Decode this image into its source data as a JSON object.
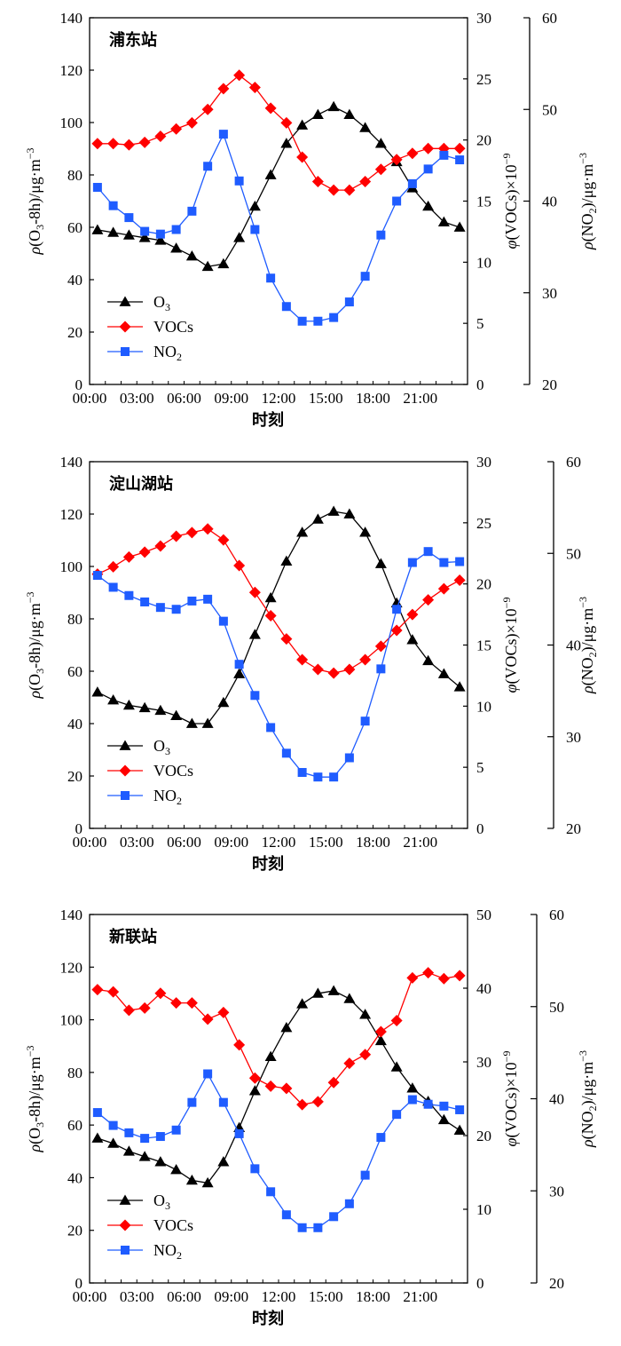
{
  "chart_data": [
    {
      "type": "line",
      "title": "浦东站",
      "xlabel": "时刻",
      "x": [
        "00:00",
        "01:00",
        "02:00",
        "03:00",
        "04:00",
        "05:00",
        "06:00",
        "07:00",
        "08:00",
        "09:00",
        "10:00",
        "11:00",
        "12:00",
        "13:00",
        "14:00",
        "15:00",
        "16:00",
        "17:00",
        "18:00",
        "19:00",
        "20:00",
        "21:00",
        "22:00",
        "23:00"
      ],
      "x_tick_labels": [
        "00:00",
        "03:00",
        "06:00",
        "09:00",
        "12:00",
        "15:00",
        "18:00",
        "21:00"
      ],
      "left_axis": {
        "label_parts": [
          "ρ",
          "(O",
          "3",
          "-8h)/μg·m",
          "−3"
        ],
        "ylim": [
          0,
          140
        ],
        "ticks": [
          0,
          20,
          40,
          60,
          80,
          100,
          120,
          140
        ]
      },
      "right_axis_1": {
        "label_parts": [
          "φ",
          "(VOCs)×10",
          "−9"
        ],
        "ylim": [
          0,
          30
        ],
        "ticks": [
          0,
          5,
          10,
          15,
          20,
          25,
          30
        ]
      },
      "right_axis_2": {
        "label_parts": [
          "ρ",
          "(NO",
          "2",
          ")/μg·m",
          "−3"
        ],
        "ylim": [
          20,
          60
        ],
        "ticks": [
          20,
          30,
          40,
          50,
          60
        ]
      },
      "series": [
        {
          "name": "O3",
          "axis": "left",
          "color": "#000000",
          "marker": "triangle",
          "values": [
            59,
            58,
            57,
            56,
            55,
            52,
            49,
            45,
            46,
            56,
            68,
            80,
            92,
            99,
            103,
            106,
            103,
            98,
            92,
            85,
            75,
            68,
            62,
            60
          ]
        },
        {
          "name": "VOCs",
          "axis": "right_1",
          "color": "#ff0000",
          "marker": "diamond",
          "values": [
            19.7,
            19.7,
            19.6,
            19.8,
            20.3,
            20.9,
            21.4,
            22.5,
            24.2,
            25.3,
            24.3,
            22.6,
            21.4,
            18.6,
            16.6,
            15.9,
            15.9,
            16.6,
            17.6,
            18.4,
            18.9,
            19.3,
            19.3,
            19.3
          ]
        },
        {
          "name": "NO2",
          "axis": "right_2",
          "color": "#1f5cff",
          "marker": "square",
          "values": [
            41.5,
            39.5,
            38.2,
            36.7,
            36.4,
            36.9,
            38.9,
            43.8,
            47.3,
            42.2,
            36.9,
            31.6,
            28.5,
            26.9,
            26.9,
            27.3,
            29.0,
            31.8,
            36.3,
            40.0,
            41.9,
            43.5,
            45.0,
            44.5
          ]
        }
      ]
    },
    {
      "type": "line",
      "title": "淀山湖站",
      "xlabel": "时刻",
      "x": [
        "00:00",
        "01:00",
        "02:00",
        "03:00",
        "04:00",
        "05:00",
        "06:00",
        "07:00",
        "08:00",
        "09:00",
        "10:00",
        "11:00",
        "12:00",
        "13:00",
        "14:00",
        "15:00",
        "16:00",
        "17:00",
        "18:00",
        "19:00",
        "20:00",
        "21:00",
        "22:00",
        "23:00"
      ],
      "x_tick_labels": [
        "00:00",
        "03:00",
        "06:00",
        "09:00",
        "12:00",
        "15:00",
        "18:00",
        "21:00"
      ],
      "left_axis": {
        "label_parts": [
          "ρ",
          "(O",
          "3",
          "-8h)/μg·m",
          "−3"
        ],
        "ylim": [
          0,
          140
        ],
        "ticks": [
          0,
          20,
          40,
          60,
          80,
          100,
          120,
          140
        ]
      },
      "right_axis_1": {
        "label_parts": [
          "φ",
          "(VOCs)×10",
          "−9"
        ],
        "ylim": [
          0,
          30
        ],
        "ticks": [
          0,
          5,
          10,
          15,
          20,
          25,
          30
        ]
      },
      "right_axis_2": {
        "label_parts": [
          "ρ",
          "(NO",
          "2",
          ")/μg·m",
          "−3"
        ],
        "ylim": [
          20,
          60
        ],
        "ticks": [
          20,
          30,
          40,
          50,
          60
        ]
      },
      "series": [
        {
          "name": "O3",
          "axis": "left",
          "color": "#000000",
          "marker": "triangle",
          "values": [
            52,
            49,
            47,
            46,
            45,
            43,
            40,
            40,
            48,
            59,
            74,
            88,
            102,
            113,
            118,
            121,
            120,
            113,
            101,
            86,
            72,
            64,
            59,
            54
          ]
        },
        {
          "name": "VOCs",
          "axis": "right_1",
          "color": "#ff0000",
          "marker": "diamond",
          "values": [
            20.8,
            21.4,
            22.2,
            22.6,
            23.1,
            23.9,
            24.2,
            24.5,
            23.6,
            21.5,
            19.3,
            17.4,
            15.5,
            13.8,
            13.0,
            12.7,
            13.0,
            13.8,
            14.9,
            16.2,
            17.5,
            18.7,
            19.6,
            20.3
          ]
        },
        {
          "name": "NO2",
          "axis": "right_2",
          "color": "#1f5cff",
          "marker": "square",
          "values": [
            47.6,
            46.3,
            45.4,
            44.7,
            44.1,
            43.9,
            44.8,
            45.0,
            42.6,
            37.9,
            34.5,
            31.0,
            28.2,
            26.1,
            25.6,
            25.6,
            27.7,
            31.7,
            37.4,
            43.9,
            49.0,
            50.2,
            49.0,
            49.1
          ]
        }
      ]
    },
    {
      "type": "line",
      "title": "新联站",
      "xlabel": "时刻",
      "x": [
        "00:00",
        "01:00",
        "02:00",
        "03:00",
        "04:00",
        "05:00",
        "06:00",
        "07:00",
        "08:00",
        "09:00",
        "10:00",
        "11:00",
        "12:00",
        "13:00",
        "14:00",
        "15:00",
        "16:00",
        "17:00",
        "18:00",
        "19:00",
        "20:00",
        "21:00",
        "22:00",
        "23:00"
      ],
      "x_tick_labels": [
        "00:00",
        "03:00",
        "06:00",
        "09:00",
        "12:00",
        "15:00",
        "18:00",
        "21:00"
      ],
      "left_axis": {
        "label_parts": [
          "ρ",
          "(O",
          "3",
          "-8h)/μg·m",
          "−3"
        ],
        "ylim": [
          0,
          140
        ],
        "ticks": [
          0,
          20,
          40,
          60,
          80,
          100,
          120,
          140
        ]
      },
      "right_axis_1": {
        "label_parts": [
          "φ",
          "(VOCs)×10",
          "−9"
        ],
        "ylim": [
          0,
          50
        ],
        "ticks": [
          0,
          10,
          20,
          30,
          40,
          50
        ]
      },
      "right_axis_2": {
        "label_parts": [
          "ρ",
          "(NO",
          "2",
          ")/μg·m",
          "−3"
        ],
        "ylim": [
          20,
          60
        ],
        "ticks": [
          20,
          30,
          40,
          50,
          60
        ]
      },
      "series": [
        {
          "name": "O3",
          "axis": "left",
          "color": "#000000",
          "marker": "triangle",
          "values": [
            55,
            53,
            50,
            48,
            46,
            43,
            39,
            38,
            46,
            59,
            73,
            86,
            97,
            106,
            110,
            111,
            108,
            102,
            92,
            82,
            74,
            69,
            62,
            58
          ]
        },
        {
          "name": "VOCs",
          "axis": "right_1",
          "color": "#ff0000",
          "marker": "diamond",
          "values": [
            39.8,
            39.5,
            37.0,
            37.3,
            39.3,
            38.0,
            38.0,
            35.8,
            36.7,
            32.3,
            27.8,
            26.7,
            26.4,
            24.2,
            24.6,
            27.2,
            29.8,
            31.0,
            34.1,
            35.6,
            41.4,
            42.1,
            41.3,
            41.7
          ]
        },
        {
          "name": "NO2",
          "axis": "right_2",
          "color": "#1f5cff",
          "marker": "square",
          "values": [
            38.5,
            37.1,
            36.3,
            35.7,
            35.9,
            36.6,
            39.6,
            42.7,
            39.6,
            36.2,
            32.4,
            29.9,
            27.4,
            26.0,
            26.0,
            27.2,
            28.6,
            31.7,
            35.8,
            38.3,
            39.9,
            39.4,
            39.2,
            38.8
          ]
        }
      ]
    }
  ]
}
